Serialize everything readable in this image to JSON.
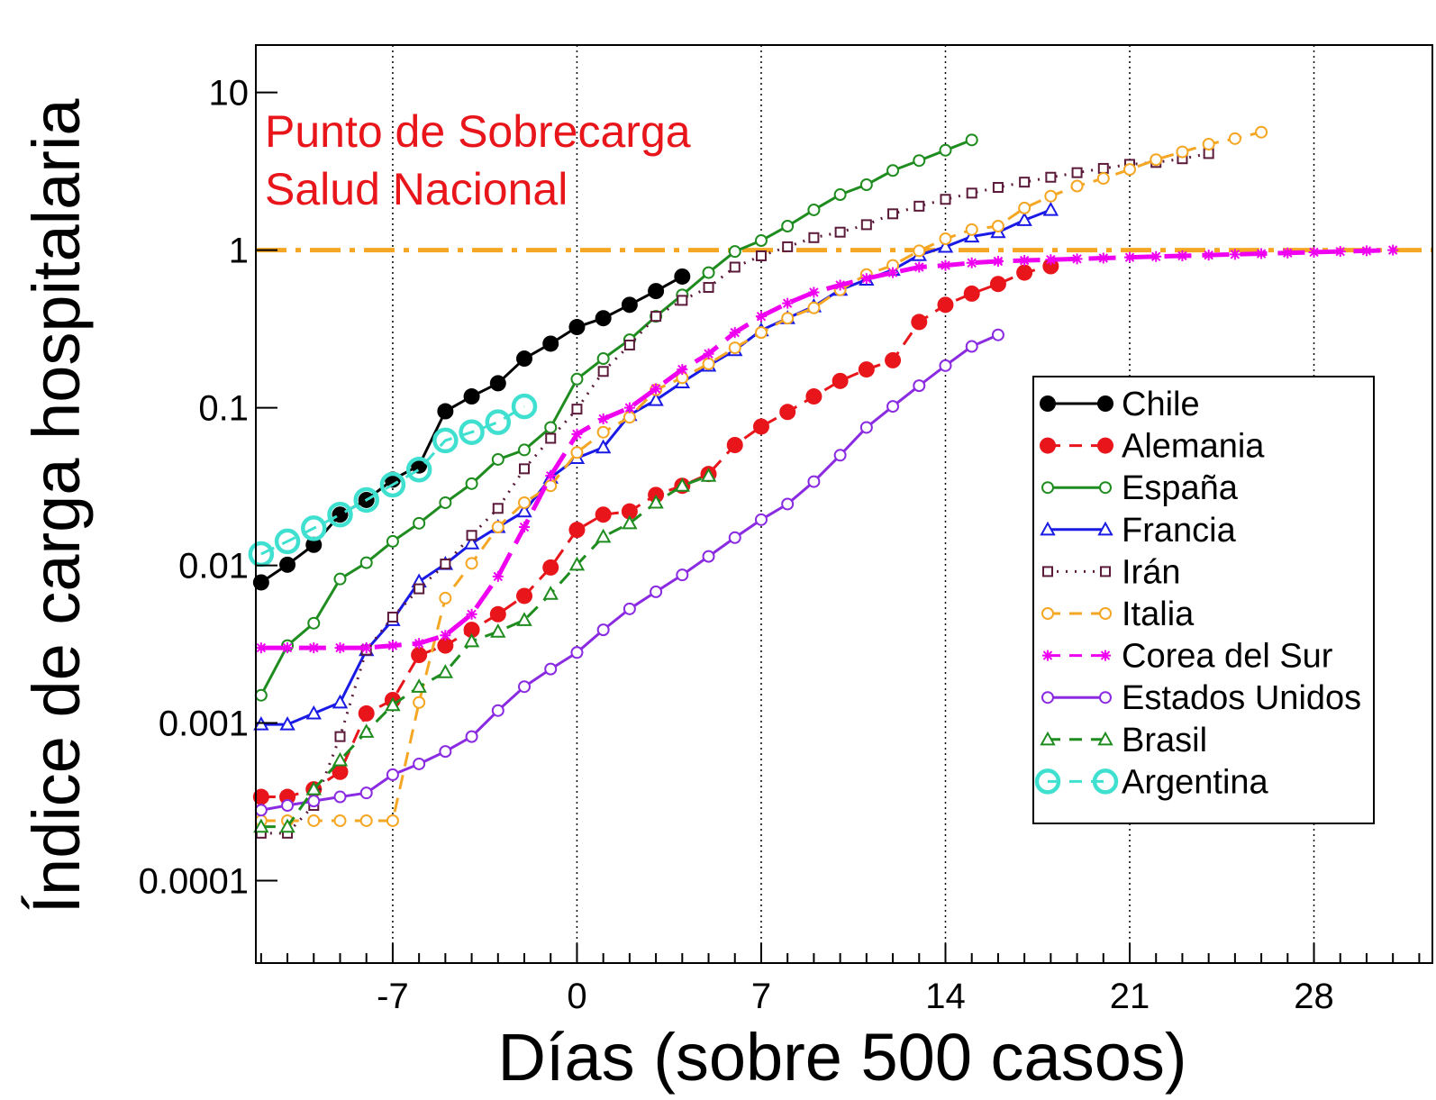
{
  "chart_data": {
    "type": "line",
    "title": "",
    "xlabel": "Días (sobre 500 casos)",
    "ylabel": "Índice de carga hospitalaria",
    "xlim": [
      -12.2,
      32.5
    ],
    "ylim": [
      3e-05,
      20
    ],
    "yscale": "log",
    "xticks": [
      -7,
      0,
      7,
      14,
      21,
      28
    ],
    "xtick_labels": [
      "-7",
      "0",
      "7",
      "14",
      "21",
      "28"
    ],
    "yticks": [
      0.0001,
      0.001,
      0.01,
      0.1,
      1,
      10
    ],
    "ytick_labels": [
      "0.0001",
      "0.001",
      "0.01",
      "0.1",
      "1",
      "10"
    ],
    "grid": "vertical dotted lines at x ticks",
    "legend_position": "right-middle",
    "reference_line": {
      "y": 1,
      "color": "#F5A623",
      "style": "dash-dot"
    },
    "annotation": {
      "lines": [
        "Punto de Sobrecarga",
        "Salud Nacional"
      ],
      "color": "#E8151B"
    },
    "series": [
      {
        "name": "Chile",
        "color": "#000000",
        "marker": "filled-circle",
        "dash": "solid",
        "x": [
          -12,
          -11,
          -10,
          -9,
          -8,
          -7,
          -6,
          -5,
          -4,
          -3,
          -2,
          -1,
          0,
          1,
          2,
          3,
          4
        ],
        "y": [
          0.0078,
          0.0101,
          0.0135,
          0.021,
          0.026,
          0.035,
          0.043,
          0.095,
          0.118,
          0.143,
          0.205,
          0.255,
          0.325,
          0.37,
          0.45,
          0.55,
          0.68
        ]
      },
      {
        "name": "Alemania",
        "color": "#E8151B",
        "marker": "filled-circle",
        "dash": "dashed",
        "x": [
          -12,
          -11,
          -10,
          -9,
          -8,
          -7,
          -6,
          -5,
          -4,
          -3,
          -2,
          -1,
          0,
          1,
          2,
          3,
          4,
          5,
          6,
          7,
          8,
          9,
          10,
          11,
          12,
          13,
          14,
          15,
          16,
          17,
          18
        ],
        "y": [
          0.00034,
          0.00034,
          0.00038,
          0.00049,
          0.00115,
          0.0014,
          0.0027,
          0.0031,
          0.0039,
          0.0049,
          0.0064,
          0.0097,
          0.0168,
          0.021,
          0.022,
          0.028,
          0.032,
          0.038,
          0.058,
          0.076,
          0.094,
          0.118,
          0.148,
          0.175,
          0.2,
          0.35,
          0.45,
          0.53,
          0.61,
          0.72,
          0.79
        ]
      },
      {
        "name": "España",
        "color": "#1E8C1E",
        "marker": "circle-dot",
        "dash": "solid",
        "x": [
          -12,
          -11,
          -10,
          -9,
          -8,
          -7,
          -6,
          -5,
          -4,
          -3,
          -2,
          -1,
          0,
          1,
          2,
          3,
          4,
          5,
          6,
          7,
          8,
          9,
          10,
          11,
          12,
          13,
          14,
          15
        ],
        "y": [
          0.0015,
          0.0031,
          0.0043,
          0.0082,
          0.0104,
          0.0142,
          0.0185,
          0.025,
          0.033,
          0.047,
          0.054,
          0.075,
          0.152,
          0.205,
          0.27,
          0.38,
          0.52,
          0.72,
          0.98,
          1.15,
          1.42,
          1.8,
          2.25,
          2.6,
          3.2,
          3.7,
          4.3,
          5.0
        ]
      },
      {
        "name": "Francia",
        "color": "#1A1AE6",
        "marker": "open-triangle",
        "dash": "solid",
        "x": [
          -12,
          -11,
          -10,
          -9,
          -8,
          -7,
          -6,
          -5,
          -4,
          -3,
          -2,
          -1,
          0,
          1,
          2,
          3,
          4,
          5,
          6,
          7,
          8,
          9,
          10,
          11,
          12,
          13,
          14,
          15,
          16,
          17,
          18
        ],
        "y": [
          0.00098,
          0.00098,
          0.00115,
          0.00135,
          0.0029,
          0.0045,
          0.0079,
          0.0102,
          0.0138,
          0.0175,
          0.022,
          0.036,
          0.048,
          0.056,
          0.09,
          0.112,
          0.145,
          0.185,
          0.232,
          0.31,
          0.37,
          0.44,
          0.56,
          0.65,
          0.75,
          0.93,
          1.05,
          1.22,
          1.3,
          1.55,
          1.8
        ]
      },
      {
        "name": "Irán",
        "color": "#5C1A3A",
        "marker": "open-square-dot",
        "dash": "dotted",
        "x": [
          -12,
          -11,
          -10,
          -9,
          -8,
          -7,
          -6,
          -5,
          -4,
          -3,
          -2,
          -1,
          0,
          1,
          2,
          3,
          4,
          5,
          6,
          7,
          8,
          9,
          10,
          11,
          12,
          13,
          14,
          15,
          16,
          17,
          18,
          19,
          20,
          21,
          22,
          23,
          24
        ],
        "y": [
          0.0002,
          0.0002,
          0.0003,
          0.00082,
          0.0029,
          0.0047,
          0.0071,
          0.0102,
          0.0155,
          0.023,
          0.041,
          0.064,
          0.098,
          0.17,
          0.25,
          0.38,
          0.48,
          0.58,
          0.78,
          0.92,
          1.05,
          1.2,
          1.3,
          1.45,
          1.7,
          1.9,
          2.1,
          2.3,
          2.5,
          2.7,
          2.9,
          3.1,
          3.3,
          3.5,
          3.6,
          3.8,
          4.1
        ]
      },
      {
        "name": "Italia",
        "color": "#F5A623",
        "marker": "circle-dot",
        "dash": "dashed",
        "x": [
          -12,
          -11,
          -10,
          -9,
          -8,
          -7,
          -6,
          -5,
          -4,
          -3,
          -2,
          -1,
          0,
          1,
          2,
          3,
          4,
          5,
          6,
          7,
          8,
          9,
          10,
          11,
          12,
          13,
          14,
          15,
          16,
          17,
          18,
          19,
          20,
          21,
          22,
          23,
          24,
          25,
          26
        ],
        "y": [
          0.00024,
          0.00024,
          0.00024,
          0.00024,
          0.00024,
          0.00024,
          0.00135,
          0.0062,
          0.0103,
          0.0175,
          0.025,
          0.032,
          0.052,
          0.07,
          0.087,
          0.13,
          0.155,
          0.19,
          0.24,
          0.3,
          0.37,
          0.43,
          0.56,
          0.7,
          0.8,
          0.99,
          1.18,
          1.35,
          1.42,
          1.85,
          2.2,
          2.55,
          2.85,
          3.25,
          3.75,
          4.2,
          4.7,
          5.1,
          5.6
        ]
      },
      {
        "name": "Corea del Sur",
        "color": "#F000F0",
        "marker": "asterisk",
        "dash": "long-dashed",
        "x": [
          -12,
          -11,
          -10,
          -9,
          -8,
          -7,
          -6,
          -5,
          -4,
          -3,
          -2,
          -1,
          0,
          1,
          2,
          3,
          4,
          5,
          6,
          7,
          8,
          9,
          10,
          11,
          12,
          13,
          14,
          15,
          16,
          17,
          18,
          19,
          20,
          21,
          22,
          23,
          24,
          25,
          26,
          27,
          28,
          29,
          30,
          31
        ],
        "y": [
          0.003,
          0.003,
          0.003,
          0.003,
          0.003,
          0.0031,
          0.0032,
          0.0036,
          0.0049,
          0.0085,
          0.0175,
          0.037,
          0.068,
          0.085,
          0.1,
          0.132,
          0.175,
          0.22,
          0.3,
          0.38,
          0.46,
          0.54,
          0.6,
          0.66,
          0.72,
          0.78,
          0.8,
          0.83,
          0.85,
          0.86,
          0.87,
          0.88,
          0.89,
          0.9,
          0.91,
          0.92,
          0.93,
          0.94,
          0.95,
          0.96,
          0.97,
          0.98,
          0.99,
          1.0
        ]
      },
      {
        "name": "Estados Unidos",
        "color": "#8A2BE2",
        "marker": "circle-dot",
        "dash": "solid",
        "x": [
          -12,
          -11,
          -10,
          -9,
          -8,
          -7,
          -6,
          -5,
          -4,
          -3,
          -2,
          -1,
          0,
          1,
          2,
          3,
          4,
          5,
          6,
          7,
          8,
          9,
          10,
          11,
          12,
          13,
          14,
          15,
          16
        ],
        "y": [
          0.00028,
          0.0003,
          0.00032,
          0.00034,
          0.00036,
          0.00047,
          0.00055,
          0.00066,
          0.00082,
          0.0012,
          0.0017,
          0.0022,
          0.0028,
          0.0039,
          0.0053,
          0.0068,
          0.0087,
          0.0114,
          0.015,
          0.0195,
          0.0245,
          0.034,
          0.05,
          0.075,
          0.102,
          0.138,
          0.185,
          0.245,
          0.29
        ]
      },
      {
        "name": "Brasil",
        "color": "#1E8C1E",
        "marker": "open-triangle",
        "dash": "dashed",
        "x": [
          -12,
          -11,
          -10,
          -9,
          -8,
          -7,
          -6,
          -5,
          -4,
          -3,
          -2,
          -1,
          0,
          1,
          2,
          3,
          4,
          5
        ],
        "y": [
          0.00022,
          0.00022,
          0.00038,
          0.00058,
          0.00088,
          0.0013,
          0.0017,
          0.0021,
          0.0033,
          0.0038,
          0.0045,
          0.0066,
          0.0101,
          0.0152,
          0.0185,
          0.025,
          0.032,
          0.037
        ]
      },
      {
        "name": "Argentina",
        "color": "#40E0D0",
        "marker": "large-open-circle",
        "dash": "dashed",
        "x": [
          -12,
          -11,
          -10,
          -9,
          -8,
          -7,
          -6,
          -5,
          -4,
          -3,
          -2
        ],
        "y": [
          0.0118,
          0.0142,
          0.0172,
          0.021,
          0.026,
          0.0325,
          0.0405,
          0.062,
          0.07,
          0.081,
          0.102
        ]
      }
    ]
  }
}
